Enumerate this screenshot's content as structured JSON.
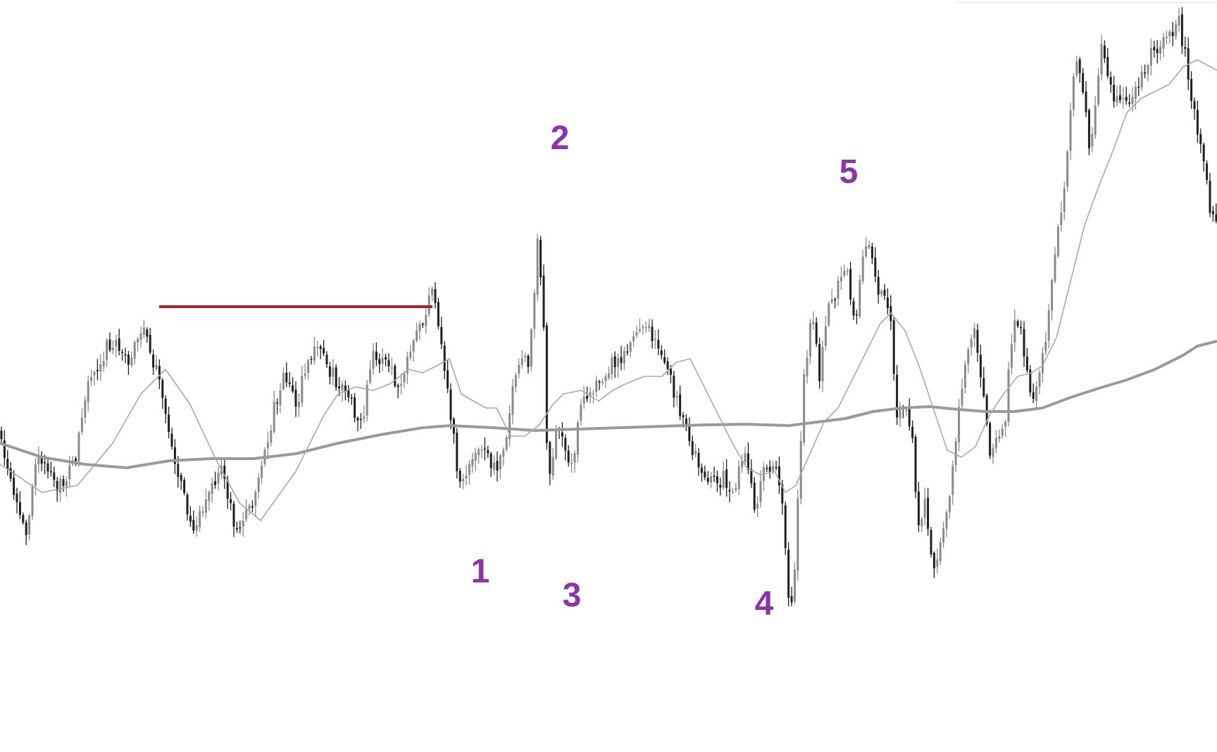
{
  "chart_data": {
    "type": "candlestick",
    "title": "",
    "xlabel": "",
    "ylabel": "",
    "ylim": [
      0,
      1064
    ],
    "grid": false,
    "legend": "none",
    "colors": {
      "up_candle": "#8a8a8a",
      "down_candle": "#1f1f1f",
      "fast_ma": "#a8a8a8",
      "slow_ma": "#9a9a9a",
      "resistance_line": "#a3262a",
      "wave_labels": "#8b35a6",
      "background": "#ffffff"
    },
    "anchors": [
      [
        0,
        610
      ],
      [
        20,
        695
      ],
      [
        40,
        760
      ],
      [
        60,
        640
      ],
      [
        85,
        700
      ],
      [
        110,
        655
      ],
      [
        130,
        540
      ],
      [
        160,
        485
      ],
      [
        185,
        510
      ],
      [
        210,
        470
      ],
      [
        225,
        520
      ],
      [
        240,
        595
      ],
      [
        255,
        660
      ],
      [
        275,
        750
      ],
      [
        300,
        705
      ],
      [
        320,
        665
      ],
      [
        340,
        755
      ],
      [
        360,
        720
      ],
      [
        380,
        650
      ],
      [
        395,
        570
      ],
      [
        410,
        530
      ],
      [
        425,
        575
      ],
      [
        445,
        505
      ],
      [
        460,
        495
      ],
      [
        480,
        540
      ],
      [
        500,
        560
      ],
      [
        515,
        620
      ],
      [
        535,
        500
      ],
      [
        555,
        520
      ],
      [
        570,
        555
      ],
      [
        590,
        500
      ],
      [
        605,
        455
      ],
      [
        618,
        415
      ],
      [
        628,
        475
      ],
      [
        642,
        570
      ],
      [
        658,
        700
      ],
      [
        672,
        655
      ],
      [
        690,
        640
      ],
      [
        708,
        670
      ],
      [
        722,
        620
      ],
      [
        740,
        515
      ],
      [
        755,
        520
      ],
      [
        768,
        345
      ],
      [
        775,
        410
      ],
      [
        782,
        680
      ],
      [
        797,
        610
      ],
      [
        815,
        665
      ],
      [
        830,
        580
      ],
      [
        850,
        540
      ],
      [
        870,
        520
      ],
      [
        890,
        500
      ],
      [
        905,
        475
      ],
      [
        925,
        470
      ],
      [
        945,
        500
      ],
      [
        960,
        555
      ],
      [
        980,
        620
      ],
      [
        995,
        655
      ],
      [
        1015,
        690
      ],
      [
        1030,
        680
      ],
      [
        1045,
        700
      ],
      [
        1060,
        640
      ],
      [
        1075,
        720
      ],
      [
        1090,
        670
      ],
      [
        1105,
        650
      ],
      [
        1117,
        730
      ],
      [
        1125,
        880
      ],
      [
        1133,
        800
      ],
      [
        1145,
        550
      ],
      [
        1158,
        445
      ],
      [
        1168,
        545
      ],
      [
        1178,
        440
      ],
      [
        1190,
        420
      ],
      [
        1205,
        380
      ],
      [
        1218,
        460
      ],
      [
        1230,
        365
      ],
      [
        1240,
        345
      ],
      [
        1250,
        410
      ],
      [
        1262,
        420
      ],
      [
        1270,
        470
      ],
      [
        1278,
        600
      ],
      [
        1290,
        580
      ],
      [
        1300,
        620
      ],
      [
        1308,
        760
      ],
      [
        1318,
        700
      ],
      [
        1328,
        810
      ],
      [
        1338,
        780
      ],
      [
        1348,
        730
      ],
      [
        1358,
        660
      ],
      [
        1368,
        560
      ],
      [
        1378,
        500
      ],
      [
        1388,
        455
      ],
      [
        1400,
        560
      ],
      [
        1412,
        650
      ],
      [
        1422,
        620
      ],
      [
        1432,
        590
      ],
      [
        1442,
        470
      ],
      [
        1452,
        460
      ],
      [
        1460,
        515
      ],
      [
        1470,
        590
      ],
      [
        1480,
        520
      ],
      [
        1490,
        475
      ],
      [
        1500,
        395
      ],
      [
        1508,
        320
      ],
      [
        1518,
        250
      ],
      [
        1528,
        120
      ],
      [
        1535,
        80
      ],
      [
        1545,
        140
      ],
      [
        1552,
        230
      ],
      [
        1558,
        160
      ],
      [
        1568,
        55
      ],
      [
        1578,
        100
      ],
      [
        1588,
        150
      ],
      [
        1600,
        130
      ],
      [
        1610,
        150
      ],
      [
        1620,
        120
      ],
      [
        1630,
        100
      ],
      [
        1640,
        70
      ],
      [
        1650,
        65
      ],
      [
        1660,
        45
      ],
      [
        1670,
        55
      ],
      [
        1678,
        20
      ],
      [
        1686,
        75
      ],
      [
        1695,
        130
      ],
      [
        1705,
        180
      ],
      [
        1715,
        250
      ],
      [
        1728,
        320
      ]
    ],
    "fast_ma": [
      [
        0,
        660
      ],
      [
        60,
        700
      ],
      [
        110,
        690
      ],
      [
        160,
        630
      ],
      [
        200,
        560
      ],
      [
        235,
        525
      ],
      [
        270,
        575
      ],
      [
        305,
        650
      ],
      [
        340,
        715
      ],
      [
        370,
        740
      ],
      [
        395,
        705
      ],
      [
        420,
        670
      ],
      [
        440,
        630
      ],
      [
        460,
        590
      ],
      [
        480,
        560
      ],
      [
        505,
        550
      ],
      [
        530,
        555
      ],
      [
        555,
        545
      ],
      [
        580,
        525
      ],
      [
        600,
        530
      ],
      [
        620,
        520
      ],
      [
        638,
        510
      ],
      [
        655,
        560
      ],
      [
        672,
        570
      ],
      [
        690,
        580
      ],
      [
        705,
        580
      ],
      [
        725,
        620
      ],
      [
        745,
        620
      ],
      [
        765,
        605
      ],
      [
        785,
        575
      ],
      [
        800,
        560
      ],
      [
        825,
        555
      ],
      [
        850,
        570
      ],
      [
        870,
        555
      ],
      [
        890,
        545
      ],
      [
        915,
        535
      ],
      [
        940,
        535
      ],
      [
        960,
        515
      ],
      [
        980,
        510
      ],
      [
        1000,
        550
      ],
      [
        1020,
        590
      ],
      [
        1040,
        630
      ],
      [
        1060,
        665
      ],
      [
        1080,
        675
      ],
      [
        1100,
        670
      ],
      [
        1115,
        700
      ],
      [
        1130,
        690
      ],
      [
        1150,
        645
      ],
      [
        1170,
        600
      ],
      [
        1190,
        580
      ],
      [
        1210,
        540
      ],
      [
        1230,
        500
      ],
      [
        1250,
        460
      ],
      [
        1265,
        445
      ],
      [
        1285,
        470
      ],
      [
        1305,
        520
      ],
      [
        1325,
        580
      ],
      [
        1345,
        640
      ],
      [
        1365,
        650
      ],
      [
        1385,
        635
      ],
      [
        1405,
        590
      ],
      [
        1425,
        560
      ],
      [
        1445,
        535
      ],
      [
        1465,
        530
      ],
      [
        1480,
        520
      ],
      [
        1500,
        480
      ],
      [
        1520,
        400
      ],
      [
        1540,
        320
      ],
      [
        1560,
        265
      ],
      [
        1580,
        215
      ],
      [
        1600,
        160
      ],
      [
        1620,
        140
      ],
      [
        1640,
        130
      ],
      [
        1660,
        120
      ],
      [
        1680,
        95
      ],
      [
        1700,
        85
      ],
      [
        1728,
        100
      ]
    ],
    "slow_ma": [
      [
        0,
        630
      ],
      [
        60,
        650
      ],
      [
        120,
        660
      ],
      [
        180,
        665
      ],
      [
        240,
        655
      ],
      [
        300,
        652
      ],
      [
        360,
        652
      ],
      [
        420,
        645
      ],
      [
        480,
        630
      ],
      [
        540,
        618
      ],
      [
        600,
        608
      ],
      [
        640,
        605
      ],
      [
        700,
        608
      ],
      [
        760,
        612
      ],
      [
        820,
        610
      ],
      [
        880,
        608
      ],
      [
        940,
        606
      ],
      [
        1000,
        604
      ],
      [
        1060,
        603
      ],
      [
        1120,
        605
      ],
      [
        1160,
        600
      ],
      [
        1200,
        595
      ],
      [
        1240,
        585
      ],
      [
        1280,
        580
      ],
      [
        1320,
        578
      ],
      [
        1360,
        582
      ],
      [
        1400,
        585
      ],
      [
        1440,
        585
      ],
      [
        1480,
        580
      ],
      [
        1520,
        565
      ],
      [
        1560,
        552
      ],
      [
        1600,
        540
      ],
      [
        1640,
        525
      ],
      [
        1680,
        505
      ],
      [
        1700,
        492
      ],
      [
        1728,
        485
      ]
    ],
    "resistance_line": {
      "x1": 226,
      "x2": 614,
      "y": 436
    },
    "annotations": [
      {
        "text": "1",
        "x": 682,
        "y": 828
      },
      {
        "text": "2",
        "x": 795,
        "y": 212
      },
      {
        "text": "3",
        "x": 812,
        "y": 862
      },
      {
        "text": "4",
        "x": 1085,
        "y": 874
      },
      {
        "text": "5",
        "x": 1205,
        "y": 260
      }
    ]
  }
}
